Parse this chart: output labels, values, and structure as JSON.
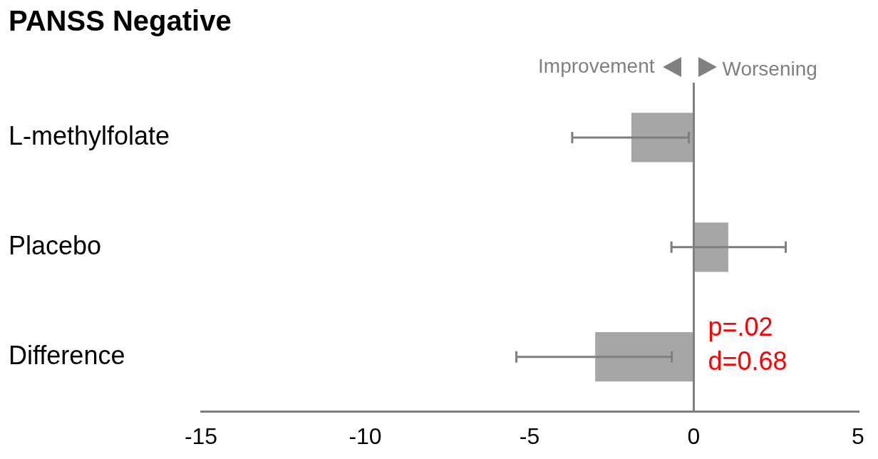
{
  "chart_data": {
    "type": "bar",
    "orientation": "horizontal",
    "title": "PANSS Negative",
    "categories": [
      "L-methylfolate",
      "Placebo",
      "Difference"
    ],
    "values": [
      -1.9,
      1.05,
      -3.0
    ],
    "errors": [
      [
        -3.7,
        -0.15
      ],
      [
        -0.68,
        2.8
      ],
      [
        -5.4,
        -0.67
      ]
    ],
    "color": "#a6a6a6",
    "xlim": [
      -15,
      5
    ],
    "xticks": [
      -15,
      -10,
      -5,
      0,
      5
    ],
    "ref_lines": [
      {
        "axis": "x",
        "value": 0,
        "color": "#808080"
      }
    ],
    "annotations": [
      "Improvement",
      "Worsening",
      "p=.02",
      "d=0.68"
    ],
    "grid": false,
    "legend": false
  }
}
